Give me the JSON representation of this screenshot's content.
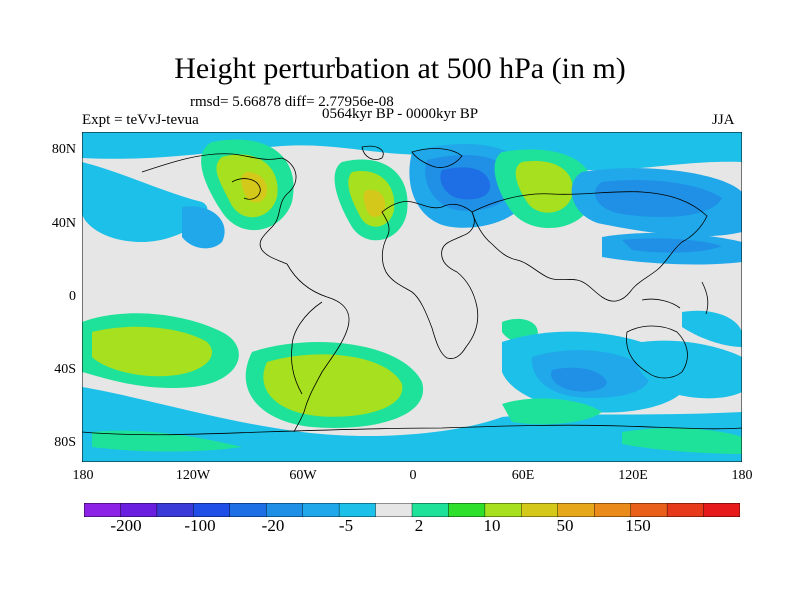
{
  "title": "Height perturbation at 500 hPa (in m)",
  "stats": "rmsd= 5.66878 diff= 2.77956e-08",
  "experiment": "Expt = teVvJ-tevua",
  "period": "0564kyr BP - 0000kyr BP",
  "season": "JJA",
  "lat_ticks": [
    "80N",
    "40N",
    "0",
    "40S",
    "80S"
  ],
  "lon_ticks": [
    "180",
    "120W",
    "60W",
    "0",
    "60E",
    "120E",
    "180"
  ],
  "colorbar": {
    "colors": [
      "#8b22e6",
      "#6a1fe0",
      "#3a3ad8",
      "#1f4fe6",
      "#1e6fe6",
      "#1f90e6",
      "#20a8ea",
      "#1cc0e8",
      "#e6e6e6",
      "#1fe29a",
      "#2ee02a",
      "#a6e01e",
      "#d4c81a",
      "#e6a81a",
      "#ea8a1a",
      "#e8601a",
      "#e63a1a",
      "#e61a1a"
    ],
    "labels": [
      "-200",
      "-100",
      "-20",
      "-5",
      "2",
      "10",
      "50",
      "150"
    ]
  },
  "map_icon": "world-map-coastlines"
}
